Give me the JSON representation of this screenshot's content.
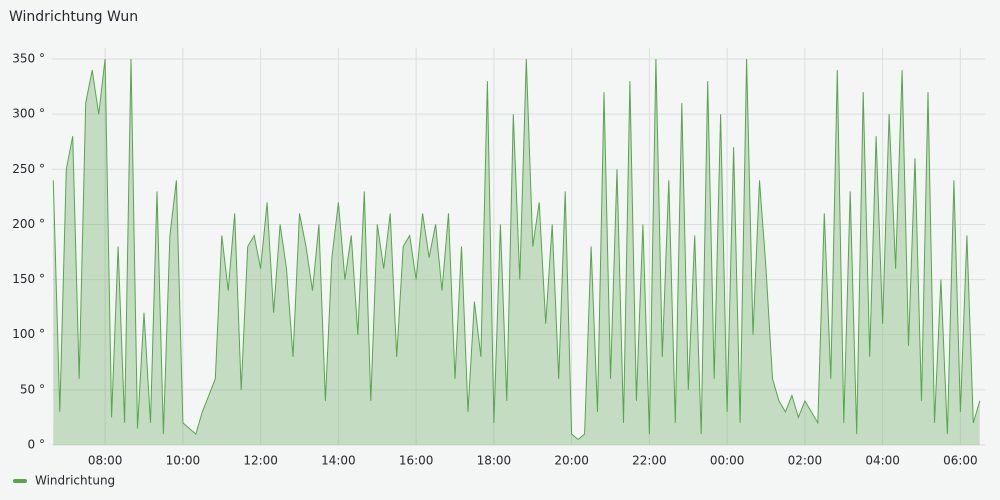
{
  "chart_data": {
    "type": "line",
    "title": "Windrichtung Wun",
    "series": [
      {
        "name": "Windrichtung",
        "color": "#56a64b",
        "x": [
          "06:40",
          "06:50",
          "07:00",
          "07:10",
          "07:20",
          "07:30",
          "07:40",
          "07:50",
          "08:00",
          "08:10",
          "08:20",
          "08:30",
          "08:40",
          "08:50",
          "09:00",
          "09:10",
          "09:20",
          "09:30",
          "09:40",
          "09:50",
          "10:00",
          "10:10",
          "10:20",
          "10:30",
          "10:40",
          "10:50",
          "11:00",
          "11:10",
          "11:20",
          "11:30",
          "11:40",
          "11:50",
          "12:00",
          "12:10",
          "12:20",
          "12:30",
          "12:40",
          "12:50",
          "13:00",
          "13:10",
          "13:20",
          "13:30",
          "13:40",
          "13:50",
          "14:00",
          "14:10",
          "14:20",
          "14:30",
          "14:40",
          "14:50",
          "15:00",
          "15:10",
          "15:20",
          "15:30",
          "15:40",
          "15:50",
          "16:00",
          "16:10",
          "16:20",
          "16:30",
          "16:40",
          "16:50",
          "17:00",
          "17:10",
          "17:20",
          "17:30",
          "17:40",
          "17:50",
          "18:00",
          "18:10",
          "18:20",
          "18:30",
          "18:40",
          "18:50",
          "19:00",
          "19:10",
          "19:20",
          "19:30",
          "19:40",
          "19:50",
          "20:00",
          "20:10",
          "20:20",
          "20:30",
          "20:40",
          "20:50",
          "21:00",
          "21:10",
          "21:20",
          "21:30",
          "21:40",
          "21:50",
          "22:00",
          "22:10",
          "22:20",
          "22:30",
          "22:40",
          "22:50",
          "23:00",
          "23:10",
          "23:20",
          "23:30",
          "23:40",
          "23:50",
          "00:00",
          "00:10",
          "00:20",
          "00:30",
          "00:40",
          "00:50",
          "01:00",
          "01:10",
          "01:20",
          "01:30",
          "01:40",
          "01:50",
          "02:00",
          "02:10",
          "02:20",
          "02:30",
          "02:40",
          "02:50",
          "03:00",
          "03:10",
          "03:20",
          "03:30",
          "03:40",
          "03:50",
          "04:00",
          "04:10",
          "04:20",
          "04:30",
          "04:40",
          "04:50",
          "05:00",
          "05:10",
          "05:20",
          "05:30",
          "05:40",
          "05:50",
          "06:00",
          "06:10",
          "06:20",
          "06:30"
        ],
        "values": [
          240,
          30,
          250,
          280,
          60,
          310,
          340,
          300,
          350,
          25,
          180,
          20,
          350,
          15,
          120,
          20,
          230,
          10,
          190,
          240,
          20,
          15,
          10,
          30,
          45,
          60,
          190,
          140,
          210,
          50,
          180,
          190,
          160,
          220,
          120,
          200,
          160,
          80,
          210,
          180,
          140,
          200,
          40,
          170,
          220,
          150,
          190,
          100,
          230,
          40,
          200,
          160,
          210,
          80,
          180,
          190,
          150,
          210,
          170,
          200,
          140,
          210,
          60,
          180,
          30,
          130,
          80,
          330,
          20,
          200,
          40,
          300,
          150,
          350,
          180,
          220,
          110,
          200,
          60,
          230,
          10,
          5,
          10,
          180,
          30,
          320,
          60,
          250,
          20,
          330,
          40,
          200,
          10,
          350,
          80,
          240,
          20,
          310,
          50,
          190,
          10,
          330,
          60,
          300,
          30,
          270,
          20,
          350,
          100,
          240,
          160,
          60,
          40,
          30,
          45,
          25,
          40,
          30,
          20,
          210,
          60,
          340,
          20,
          230,
          10,
          320,
          80,
          280,
          110,
          300,
          160,
          340,
          90,
          260,
          40,
          320,
          20,
          150,
          10,
          240,
          30,
          190,
          20,
          40
        ]
      }
    ],
    "xlim": [
      "06:38",
      "06:38"
    ],
    "xticks": [
      "08:00",
      "10:00",
      "12:00",
      "14:00",
      "16:00",
      "18:00",
      "20:00",
      "22:00",
      "00:00",
      "02:00",
      "04:00",
      "06:00"
    ],
    "ylim": [
      0,
      360
    ],
    "yticks": [
      {
        "value": 0,
        "label": "0 °"
      },
      {
        "value": 50,
        "label": "50 °"
      },
      {
        "value": 100,
        "label": "100 °"
      },
      {
        "value": 150,
        "label": "150 °"
      },
      {
        "value": 200,
        "label": "200 °"
      },
      {
        "value": 250,
        "label": "250 °"
      },
      {
        "value": 300,
        "label": "300 °"
      },
      {
        "value": 350,
        "label": "350 °"
      }
    ],
    "grid": true,
    "legend": "bottom-left"
  }
}
